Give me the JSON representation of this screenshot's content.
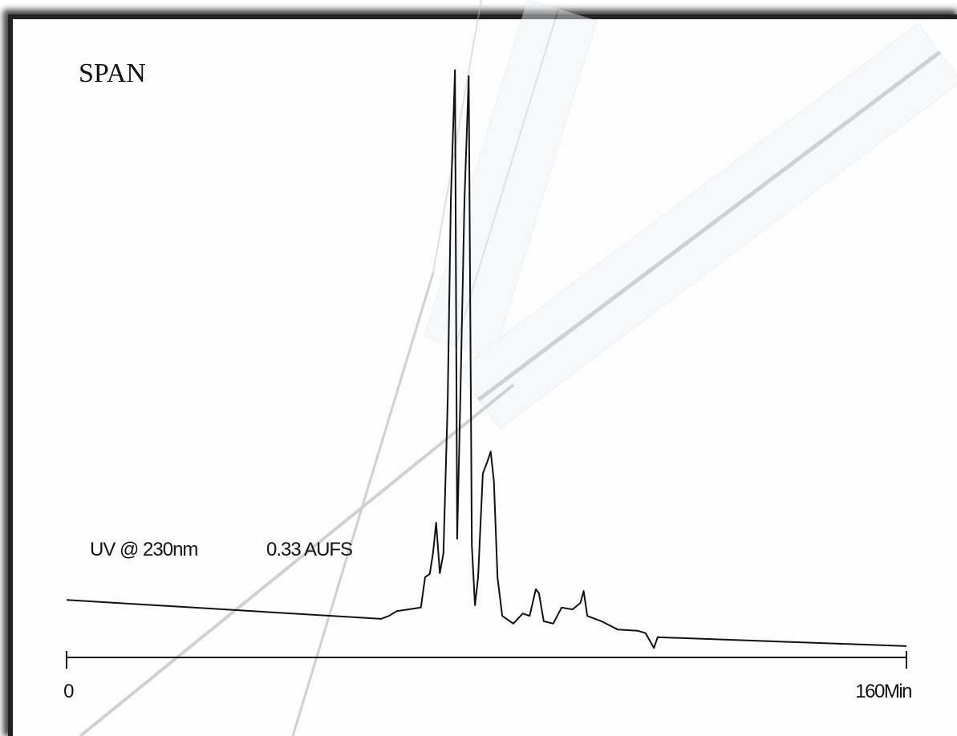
{
  "chart_data": {
    "type": "line",
    "title": "SPAN",
    "annotations": [
      "UV @ 230nm",
      "0.33 AUFS"
    ],
    "x": [
      0,
      59.9,
      61.4,
      62.9,
      67.5,
      68.3,
      69.2,
      69.8,
      70.4,
      71.1,
      71.8,
      72.6,
      73.2,
      74.0,
      74.4,
      75.0,
      75.8,
      76.6,
      77.2,
      77.8,
      78.4,
      79.3,
      80.2,
      80.8,
      81.4,
      82.1,
      83.0,
      85.1,
      86.9,
      88.2,
      89.4,
      90.0,
      90.9,
      92.7,
      94.3,
      96.4,
      97.9,
      98.5,
      99.2,
      101.9,
      105.0,
      108.8,
      110.3,
      111.9,
      112.6,
      160.0
    ],
    "values": [
      9.7,
      6.5,
      7.0,
      7.8,
      8.4,
      13.5,
      14.1,
      17.6,
      22.7,
      14.2,
      17.6,
      43.2,
      77.0,
      99.0,
      20.0,
      43.2,
      77.0,
      98.0,
      18.9,
      8.8,
      13.5,
      31.0,
      33.1,
      34.7,
      29.7,
      13.5,
      7.0,
      5.7,
      7.4,
      7.0,
      11.5,
      10.8,
      6.1,
      5.7,
      8.4,
      8.1,
      9.2,
      11.2,
      7.0,
      6.1,
      4.7,
      4.5,
      4.1,
      1.6,
      3.4,
      1.9
    ],
    "color": "#111111",
    "xlim": [
      0,
      160
    ],
    "xticks": [
      0,
      {
        "value": 160,
        "label": "160Min"
      }
    ],
    "ylim": [
      0,
      100
    ]
  }
}
